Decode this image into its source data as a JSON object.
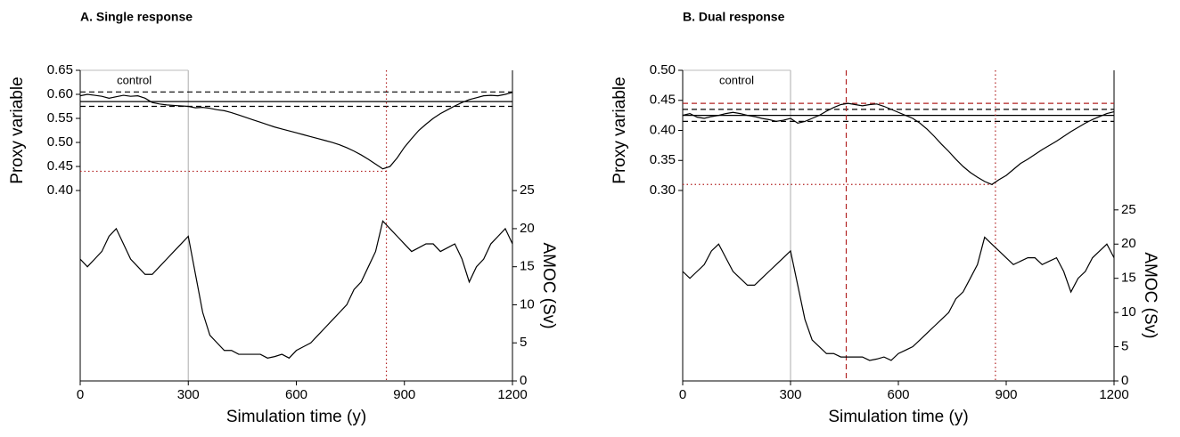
{
  "chart_data": [
    {
      "type": "line",
      "title": "A. Single response",
      "xlabel": "Simulation time (y)",
      "ylabel": "Proxy variable",
      "y2label": "AMOC (Sv)",
      "xlim": [
        0,
        1200
      ],
      "xticks": [
        0,
        300,
        600,
        900,
        1200
      ],
      "ylim": [
        0.004,
        0.65
      ],
      "yticks": [
        {
          "value": 0.4,
          "label": "0.40"
        },
        0.45,
        {
          "value": 0.5,
          "label": "0.50"
        },
        0.55,
        {
          "value": 0.6,
          "label": "0.60"
        },
        0.65
      ],
      "y2lim": [
        0,
        40.8
      ],
      "y2ticks": [
        0,
        5,
        10,
        15,
        20,
        25
      ],
      "annotations": [
        {
          "text": "control"
        }
      ],
      "control_period": [
        0,
        300
      ],
      "control_color": "#bbbbbb",
      "hlines": [
        {
          "value": 0.605,
          "style": "dashed",
          "color": "#000000"
        },
        {
          "value": 0.585,
          "style": "solid",
          "color": "#000000"
        },
        {
          "value": 0.575,
          "style": "dashed",
          "color": "#000000"
        },
        {
          "value": 0.44,
          "style": "dotted",
          "color": "#b22222",
          "x_end": 850
        }
      ],
      "vlines": [
        {
          "value": 850,
          "style": "dotted",
          "color": "#b22222"
        }
      ],
      "x": [
        0,
        20,
        40,
        60,
        80,
        100,
        120,
        140,
        160,
        180,
        200,
        220,
        240,
        260,
        280,
        300,
        320,
        340,
        360,
        380,
        400,
        420,
        440,
        460,
        480,
        500,
        520,
        540,
        560,
        580,
        600,
        620,
        640,
        660,
        680,
        700,
        720,
        740,
        760,
        780,
        800,
        820,
        840,
        860,
        880,
        900,
        920,
        940,
        960,
        980,
        1000,
        1020,
        1040,
        1060,
        1080,
        1100,
        1120,
        1140,
        1160,
        1180,
        1200
      ],
      "series": [
        {
          "color": "#000000",
          "axis": "y",
          "values": [
            0.597,
            0.6,
            0.598,
            0.596,
            0.592,
            0.595,
            0.598,
            0.596,
            0.597,
            0.592,
            0.583,
            0.58,
            0.578,
            0.577,
            0.576,
            0.575,
            0.572,
            0.573,
            0.571,
            0.568,
            0.566,
            0.562,
            0.557,
            0.552,
            0.547,
            0.542,
            0.537,
            0.532,
            0.528,
            0.524,
            0.52,
            0.516,
            0.512,
            0.508,
            0.504,
            0.5,
            0.495,
            0.489,
            0.482,
            0.474,
            0.465,
            0.455,
            0.445,
            0.45,
            0.468,
            0.49,
            0.508,
            0.525,
            0.538,
            0.55,
            0.56,
            0.568,
            0.576,
            0.583,
            0.589,
            0.593,
            0.597,
            0.598,
            0.597,
            0.6,
            0.604
          ]
        },
        {
          "color": "#000000",
          "axis": "y2",
          "values": [
            16,
            15,
            16,
            17,
            19,
            20,
            18,
            16,
            15,
            14,
            14,
            15,
            16,
            17,
            18,
            19,
            14,
            9,
            6,
            5,
            4,
            4,
            3.5,
            3.5,
            3.5,
            3.5,
            3,
            3.2,
            3.5,
            3,
            4,
            4.5,
            5,
            6,
            7,
            8,
            9,
            10,
            12,
            13,
            15,
            17,
            21,
            20,
            19,
            18,
            17,
            17.5,
            18,
            18,
            17,
            17.5,
            18,
            16,
            13,
            15,
            16,
            18,
            19,
            20,
            18
          ]
        }
      ]
    },
    {
      "type": "line",
      "title": "B. Dual response",
      "xlabel": "Simulation time (y)",
      "ylabel": "Proxy variable",
      "y2label": "AMOC (Sv)",
      "xlim": [
        0,
        1200
      ],
      "xticks": [
        0,
        300,
        600,
        900,
        1200
      ],
      "ylim": [
        -0.017,
        0.5
      ],
      "yticks": [
        {
          "value": 0.3,
          "label": "0.30"
        },
        0.35,
        {
          "value": 0.4,
          "label": "0.40"
        },
        0.45,
        {
          "value": 0.5,
          "label": "0.50"
        }
      ],
      "y2lim": [
        0,
        45.4
      ],
      "y2ticks": [
        0,
        5,
        10,
        15,
        20,
        25
      ],
      "annotations": [
        {
          "text": "control"
        }
      ],
      "control_period": [
        0,
        300
      ],
      "control_color": "#bbbbbb",
      "hlines": [
        {
          "value": 0.445,
          "style": "dashed",
          "color": "#b22222"
        },
        {
          "value": 0.435,
          "style": "dashed",
          "color": "#000000"
        },
        {
          "value": 0.425,
          "style": "solid",
          "color": "#000000"
        },
        {
          "value": 0.415,
          "style": "dashed",
          "color": "#000000"
        },
        {
          "value": 0.31,
          "style": "dotted",
          "color": "#b22222",
          "x_end": 870
        }
      ],
      "vlines": [
        {
          "value": 455,
          "style": "dashed",
          "color": "#b22222"
        },
        {
          "value": 870,
          "style": "dotted",
          "color": "#b22222"
        }
      ],
      "x": [
        0,
        20,
        40,
        60,
        80,
        100,
        120,
        140,
        160,
        180,
        200,
        220,
        240,
        260,
        280,
        300,
        320,
        340,
        360,
        380,
        400,
        420,
        440,
        460,
        480,
        500,
        520,
        540,
        560,
        580,
        600,
        620,
        640,
        660,
        680,
        700,
        720,
        740,
        760,
        780,
        800,
        820,
        840,
        860,
        880,
        900,
        920,
        940,
        960,
        980,
        1000,
        1020,
        1040,
        1060,
        1080,
        1100,
        1120,
        1140,
        1160,
        1180,
        1200
      ],
      "series": [
        {
          "color": "#000000",
          "axis": "y",
          "values": [
            0.425,
            0.428,
            0.422,
            0.42,
            0.423,
            0.425,
            0.428,
            0.43,
            0.428,
            0.425,
            0.423,
            0.42,
            0.418,
            0.415,
            0.417,
            0.42,
            0.412,
            0.415,
            0.42,
            0.425,
            0.432,
            0.438,
            0.443,
            0.445,
            0.443,
            0.441,
            0.443,
            0.444,
            0.44,
            0.435,
            0.43,
            0.425,
            0.42,
            0.412,
            0.402,
            0.39,
            0.377,
            0.365,
            0.352,
            0.34,
            0.33,
            0.322,
            0.315,
            0.31,
            0.318,
            0.325,
            0.335,
            0.345,
            0.352,
            0.36,
            0.368,
            0.375,
            0.382,
            0.39,
            0.398,
            0.405,
            0.412,
            0.418,
            0.423,
            0.428,
            0.431
          ]
        },
        {
          "color": "#000000",
          "axis": "y2",
          "values": [
            16,
            15,
            16,
            17,
            19,
            20,
            18,
            16,
            15,
            14,
            14,
            15,
            16,
            17,
            18,
            19,
            14,
            9,
            6,
            5,
            4,
            4,
            3.5,
            3.5,
            3.5,
            3.5,
            3,
            3.2,
            3.5,
            3,
            4,
            4.5,
            5,
            6,
            7,
            8,
            9,
            10,
            12,
            13,
            15,
            17,
            21,
            20,
            19,
            18,
            17,
            17.5,
            18,
            18,
            17,
            17.5,
            18,
            16,
            13,
            15,
            16,
            18,
            19,
            20,
            18
          ]
        }
      ]
    }
  ]
}
